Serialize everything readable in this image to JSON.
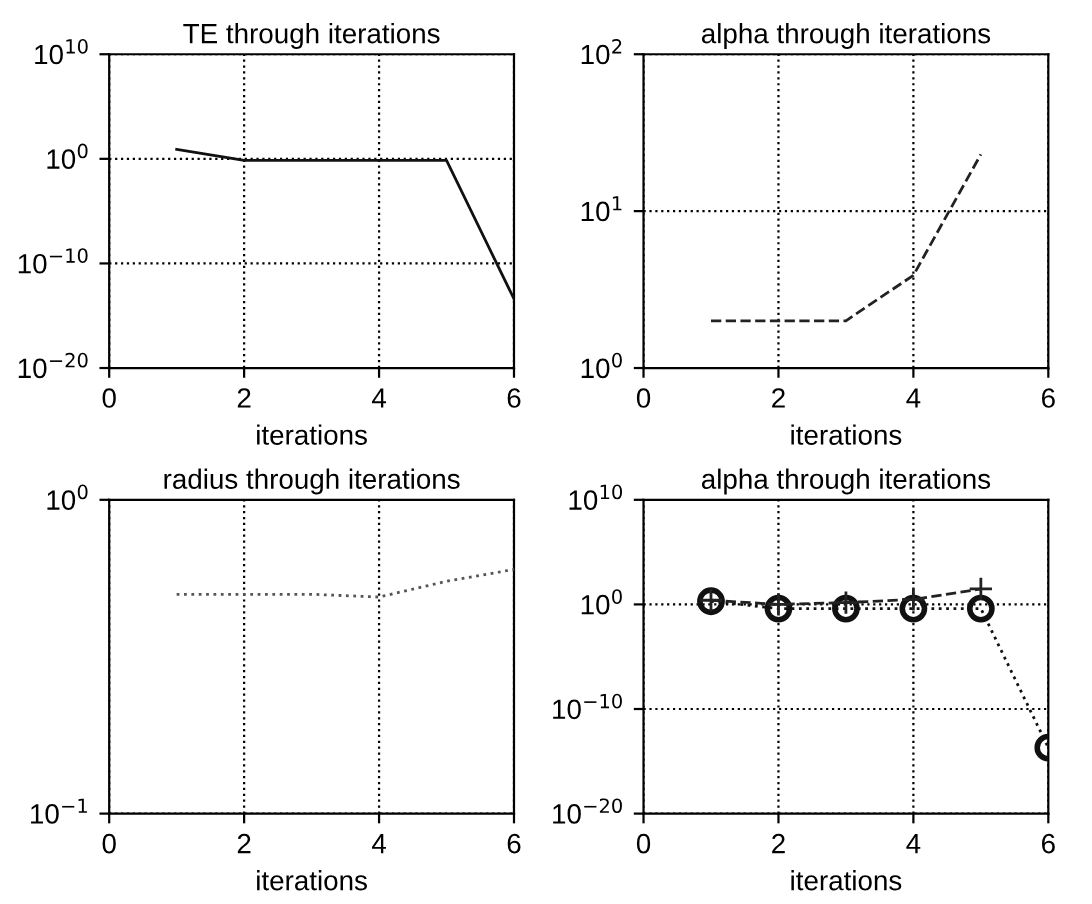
{
  "chart_data": [
    {
      "type": "line",
      "title": "TE through iterations",
      "xlabel": "iterations",
      "log": "y",
      "grid": true,
      "xlim": [
        0,
        6
      ],
      "ylim": [
        1e-20,
        10000000000.0
      ],
      "xticks": [
        0,
        2,
        4,
        6
      ],
      "yticks": [
        {
          "value": 1e-20,
          "label": "10$^{−20}$"
        },
        {
          "value": 1e-10,
          "label": "10$^{−10}$"
        },
        {
          "value": 1,
          "label": "10$^{0}$"
        },
        {
          "value": 10000000000.0,
          "label": "10$^{10}$"
        }
      ],
      "x": [
        1,
        2,
        3,
        4,
        5,
        6
      ],
      "series": [
        {
          "color": "#111111",
          "line_style": "solid",
          "marker": "none",
          "values": [
            8,
            0.7,
            0.7,
            0.7,
            0.7,
            4e-14
          ]
        }
      ]
    },
    {
      "type": "line",
      "title": "alpha through iterations",
      "xlabel": "iterations",
      "log": "y",
      "grid": true,
      "xlim": [
        0,
        6
      ],
      "ylim": [
        1,
        100
      ],
      "xticks": [
        0,
        2,
        4,
        6
      ],
      "yticks": [
        {
          "value": 1,
          "label": "10$^{0}$"
        },
        {
          "value": 10,
          "label": "10$^{1}$"
        },
        {
          "value": 100,
          "label": "10$^{2}$"
        }
      ],
      "x": [
        1,
        2,
        3,
        4,
        5
      ],
      "series": [
        {
          "color": "#222222",
          "line_style": "dashed",
          "marker": "none",
          "values": [
            2,
            2,
            2,
            3.9,
            23
          ]
        }
      ]
    },
    {
      "type": "line",
      "title": "radius through iterations",
      "xlabel": "iterations",
      "log": "y",
      "grid": true,
      "xlim": [
        0,
        6
      ],
      "ylim": [
        0.1,
        1
      ],
      "xticks": [
        0,
        2,
        4,
        6
      ],
      "yticks": [
        {
          "value": 0.1,
          "label": "10$^{−1}$"
        },
        {
          "value": 1,
          "label": "10$^{0}$"
        }
      ],
      "x": [
        1,
        2,
        3,
        4,
        5,
        6
      ],
      "series": [
        {
          "color": "#555555",
          "line_style": "dotted",
          "marker": "none",
          "values": [
            0.5,
            0.5,
            0.5,
            0.49,
            0.55,
            0.6
          ]
        }
      ]
    },
    {
      "type": "line",
      "title": "alpha through iterations",
      "xlabel": "iterations",
      "log": "y",
      "grid": true,
      "xlim": [
        0,
        6
      ],
      "ylim": [
        1e-20,
        10000000000.0
      ],
      "xticks": [
        0,
        2,
        4,
        6
      ],
      "yticks": [
        {
          "value": 1e-20,
          "label": "10$^{−20}$"
        },
        {
          "value": 1e-10,
          "label": "10$^{−10}$"
        },
        {
          "value": 1,
          "label": "10$^{0}$"
        },
        {
          "value": 10000000000.0,
          "label": "10$^{10}$"
        }
      ],
      "x": [
        1,
        2,
        3,
        4,
        5,
        6
      ],
      "series": [
        {
          "color": "#222222",
          "line_style": "dashed",
          "marker": "cross",
          "values": [
            2.5,
            1,
            1.5,
            3,
            30,
            null
          ]
        },
        {
          "color": "#111111",
          "line_style": "dotted",
          "marker": "circle",
          "values": [
            2,
            0.4,
            0.4,
            0.4,
            0.4,
            2e-14
          ]
        }
      ]
    }
  ]
}
